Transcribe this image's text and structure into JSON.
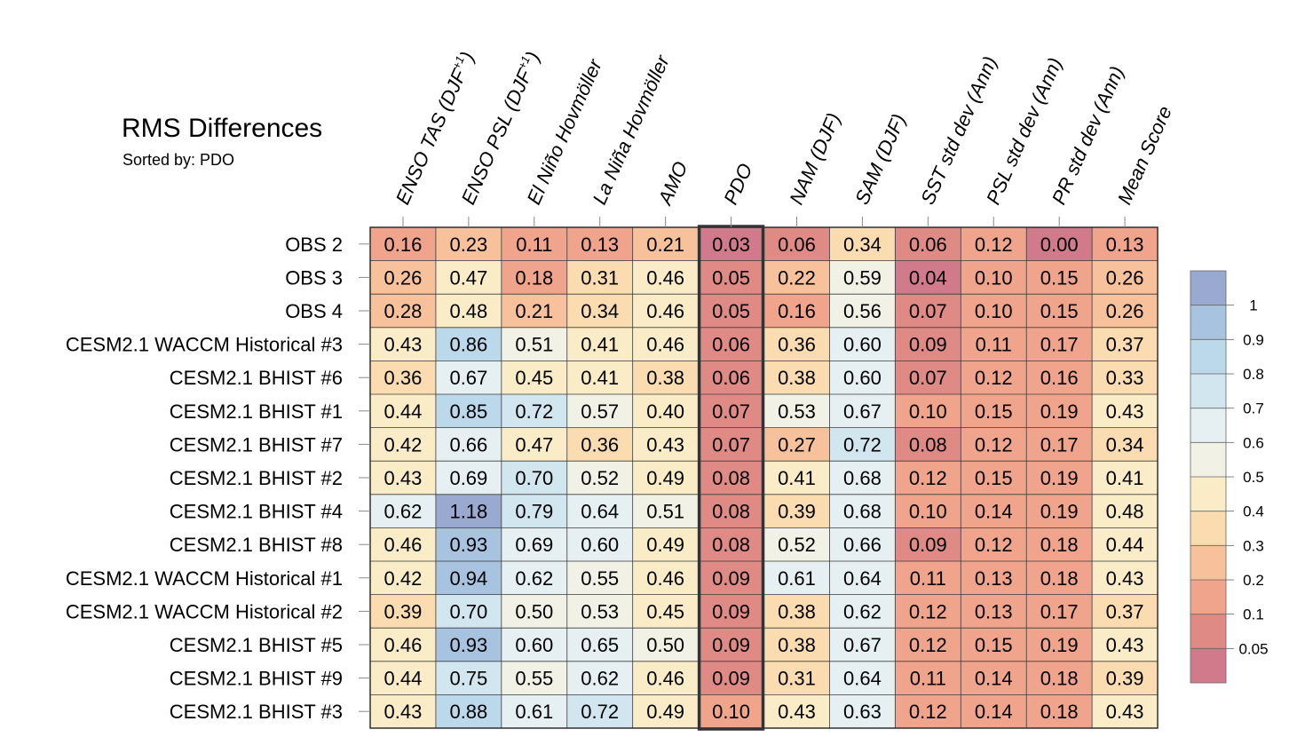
{
  "chart_data": {
    "type": "heatmap",
    "title": "RMS Differences",
    "subtitle": "Sorted by: PDO",
    "sorted_by": "PDO",
    "columns": [
      "ENSO TAS (DJF+1)",
      "ENSO PSL (DJF+1)",
      "El Niño Hovmöller",
      "La Niña Hovmöller",
      "AMO",
      "PDO",
      "NAM (DJF)",
      "SAM (DJF)",
      "SST std dev (Ann)",
      "PSL std dev (Ann)",
      "PR std dev (Ann)",
      "Mean Score"
    ],
    "rows": [
      "OBS 2",
      "OBS 3",
      "OBS 4",
      "CESM2.1 WACCM Historical #3",
      "CESM2.1 BHIST #6",
      "CESM2.1 BHIST #1",
      "CESM2.1 BHIST #7",
      "CESM2.1 BHIST #2",
      "CESM2.1 BHIST #4",
      "CESM2.1 BHIST #8",
      "CESM2.1 WACCM Historical #1",
      "CESM2.1 WACCM Historical #2",
      "CESM2.1 BHIST #5",
      "CESM2.1 BHIST #9",
      "CESM2.1 BHIST #3"
    ],
    "values": [
      [
        "0.16",
        "0.23",
        "0.11",
        "0.13",
        "0.21",
        "0.03",
        "0.06",
        "0.34",
        "0.06",
        "0.12",
        "0.00",
        "0.13"
      ],
      [
        "0.26",
        "0.47",
        "0.18",
        "0.31",
        "0.46",
        "0.05",
        "0.22",
        "0.59",
        "0.04",
        "0.10",
        "0.15",
        "0.26"
      ],
      [
        "0.28",
        "0.48",
        "0.21",
        "0.34",
        "0.46",
        "0.05",
        "0.16",
        "0.56",
        "0.07",
        "0.10",
        "0.15",
        "0.26"
      ],
      [
        "0.43",
        "0.86",
        "0.51",
        "0.41",
        "0.46",
        "0.06",
        "0.36",
        "0.60",
        "0.09",
        "0.11",
        "0.17",
        "0.37"
      ],
      [
        "0.36",
        "0.67",
        "0.45",
        "0.41",
        "0.38",
        "0.06",
        "0.38",
        "0.60",
        "0.07",
        "0.12",
        "0.16",
        "0.33"
      ],
      [
        "0.44",
        "0.85",
        "0.72",
        "0.57",
        "0.40",
        "0.07",
        "0.53",
        "0.67",
        "0.10",
        "0.15",
        "0.19",
        "0.43"
      ],
      [
        "0.42",
        "0.66",
        "0.47",
        "0.36",
        "0.43",
        "0.07",
        "0.27",
        "0.72",
        "0.08",
        "0.12",
        "0.17",
        "0.34"
      ],
      [
        "0.43",
        "0.69",
        "0.70",
        "0.52",
        "0.49",
        "0.08",
        "0.41",
        "0.68",
        "0.12",
        "0.15",
        "0.19",
        "0.41"
      ],
      [
        "0.62",
        "1.18",
        "0.79",
        "0.64",
        "0.51",
        "0.08",
        "0.39",
        "0.68",
        "0.10",
        "0.14",
        "0.19",
        "0.48"
      ],
      [
        "0.46",
        "0.93",
        "0.69",
        "0.60",
        "0.49",
        "0.08",
        "0.52",
        "0.66",
        "0.09",
        "0.12",
        "0.18",
        "0.44"
      ],
      [
        "0.42",
        "0.94",
        "0.62",
        "0.55",
        "0.46",
        "0.09",
        "0.61",
        "0.64",
        "0.11",
        "0.13",
        "0.18",
        "0.43"
      ],
      [
        "0.39",
        "0.70",
        "0.50",
        "0.53",
        "0.45",
        "0.09",
        "0.38",
        "0.62",
        "0.12",
        "0.13",
        "0.17",
        "0.37"
      ],
      [
        "0.46",
        "0.93",
        "0.60",
        "0.65",
        "0.50",
        "0.09",
        "0.38",
        "0.67",
        "0.12",
        "0.15",
        "0.19",
        "0.43"
      ],
      [
        "0.44",
        "0.75",
        "0.55",
        "0.62",
        "0.46",
        "0.09",
        "0.31",
        "0.64",
        "0.11",
        "0.14",
        "0.18",
        "0.39"
      ],
      [
        "0.43",
        "0.88",
        "0.61",
        "0.72",
        "0.49",
        "0.10",
        "0.43",
        "0.63",
        "0.12",
        "0.14",
        "0.18",
        "0.43"
      ]
    ],
    "colorbar": {
      "levels": [
        "1",
        "0.9",
        "0.8",
        "0.7",
        "0.6",
        "0.5",
        "0.4",
        "0.3",
        "0.2",
        "0.1",
        "0.05"
      ],
      "level_values": [
        1,
        0.9,
        0.8,
        0.7,
        0.6,
        0.5,
        0.4,
        0.3,
        0.2,
        0.1,
        0.05
      ],
      "colors_top_to_bottom": [
        "#9aa9d0",
        "#a8c3e0",
        "#bcd8eb",
        "#d2e6f0",
        "#e6f0f3",
        "#f1f1e5",
        "#fbecc8",
        "#fadcb0",
        "#f6c19b",
        "#f0a48c",
        "#e08a86",
        "#d17a8c"
      ]
    },
    "highlight_column": "PDO",
    "highlight_color": "#333333"
  }
}
